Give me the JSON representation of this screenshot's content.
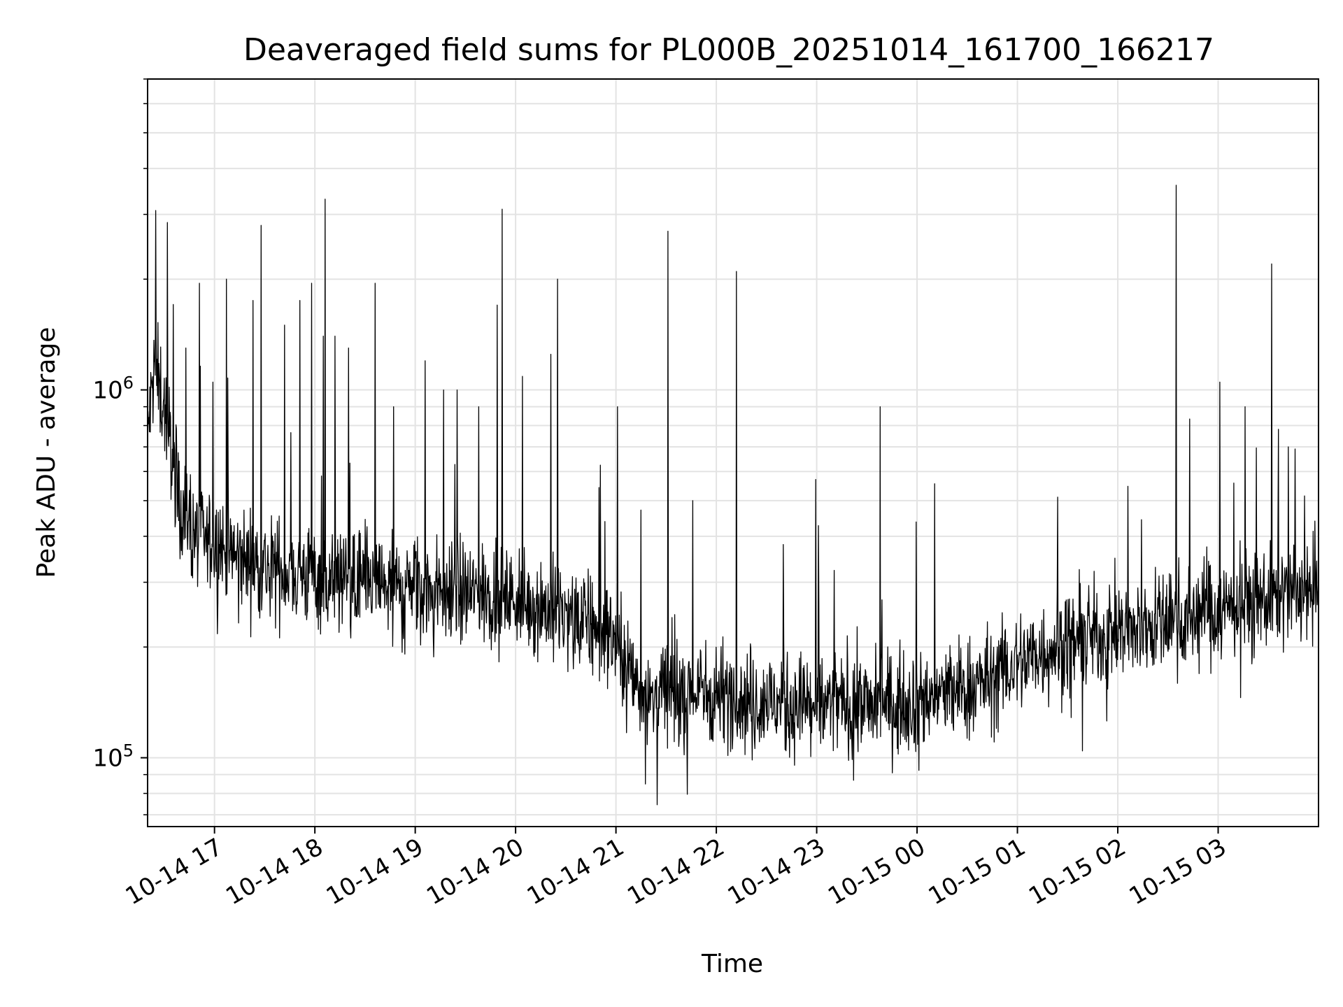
{
  "chart_data": {
    "type": "line",
    "title": "Deaveraged field sums for PL000B_20251014_161700_166217",
    "xlabel": "Time",
    "ylabel": "Peak ADU - average",
    "yscale": "log",
    "ylim": [
      65000,
      7000000
    ],
    "xlim": [
      "2025-10-14 16:20",
      "2025-10-15 04:00"
    ],
    "grid": true,
    "x_ticks": [
      "10-14 17",
      "10-14 18",
      "10-14 19",
      "10-14 20",
      "10-14 21",
      "10-14 22",
      "10-14 23",
      "10-15 00",
      "10-15 01",
      "10-15 02",
      "10-15 03"
    ],
    "y_ticks": [
      {
        "value": 100000,
        "base": "10",
        "exp": "5"
      },
      {
        "value": 1000000,
        "base": "10",
        "exp": "6"
      }
    ],
    "line_color": "#000000",
    "series": [
      {
        "x": [
          "2025-10-14 16:20",
          "2025-10-14 16:24",
          "2025-10-14 16:30",
          "2025-10-14 16:40",
          "2025-10-14 16:50",
          "2025-10-14 17:00",
          "2025-10-14 17:15",
          "2025-10-14 17:30",
          "2025-10-14 17:45",
          "2025-10-14 18:00",
          "2025-10-14 18:15",
          "2025-10-14 18:30",
          "2025-10-14 18:45",
          "2025-10-14 19:00",
          "2025-10-14 19:15",
          "2025-10-14 19:30",
          "2025-10-14 19:45",
          "2025-10-14 20:00",
          "2025-10-14 20:15",
          "2025-10-14 20:30",
          "2025-10-14 20:45",
          "2025-10-14 21:00",
          "2025-10-14 21:10",
          "2025-10-14 21:20",
          "2025-10-14 21:40",
          "2025-10-14 22:00",
          "2025-10-14 22:20",
          "2025-10-14 22:40",
          "2025-10-14 23:00",
          "2025-10-14 23:20",
          "2025-10-14 23:40",
          "2025-10-15 00:00",
          "2025-10-15 00:20",
          "2025-10-15 00:40",
          "2025-10-15 01:00",
          "2025-10-15 01:20",
          "2025-10-15 01:40",
          "2025-10-15 02:00",
          "2025-10-15 02:20",
          "2025-10-15 02:40",
          "2025-10-15 03:00",
          "2025-10-15 03:20",
          "2025-10-15 03:40",
          "2025-10-15 04:00"
        ],
        "baseline": [
          750000,
          1150000,
          900000,
          480000,
          400000,
          380000,
          350000,
          330000,
          320000,
          310000,
          300000,
          300000,
          290000,
          290000,
          285000,
          280000,
          275000,
          270000,
          260000,
          240000,
          230000,
          210000,
          165000,
          150000,
          150000,
          150000,
          145000,
          140000,
          140000,
          140000,
          140000,
          145000,
          150000,
          160000,
          180000,
          200000,
          210000,
          220000,
          230000,
          240000,
          250000,
          265000,
          275000,
          285000
        ]
      }
    ],
    "spikes": [
      {
        "x": "2025-10-14 16:25",
        "y": 1400000
      },
      {
        "x": "2025-10-14 16:43",
        "y": 1300000
      },
      {
        "x": "2025-10-14 16:51",
        "y": 1950000
      },
      {
        "x": "2025-10-14 16:59",
        "y": 1050000
      },
      {
        "x": "2025-10-14 17:07",
        "y": 2000000
      },
      {
        "x": "2025-10-14 17:23",
        "y": 1750000
      },
      {
        "x": "2025-10-14 17:28",
        "y": 2800000
      },
      {
        "x": "2025-10-14 17:42",
        "y": 1500000
      },
      {
        "x": "2025-10-14 17:51",
        "y": 1750000
      },
      {
        "x": "2025-10-14 17:58",
        "y": 1950000
      },
      {
        "x": "2025-10-14 18:05",
        "y": 1400000
      },
      {
        "x": "2025-10-14 18:06",
        "y": 3300000
      },
      {
        "x": "2025-10-14 18:12",
        "y": 1400000
      },
      {
        "x": "2025-10-14 18:20",
        "y": 1300000
      },
      {
        "x": "2025-10-14 18:36",
        "y": 1950000
      },
      {
        "x": "2025-10-14 18:47",
        "y": 900000
      },
      {
        "x": "2025-10-14 19:06",
        "y": 1200000
      },
      {
        "x": "2025-10-14 19:17",
        "y": 1000000
      },
      {
        "x": "2025-10-14 19:25",
        "y": 1000000
      },
      {
        "x": "2025-10-14 19:38",
        "y": 900000
      },
      {
        "x": "2025-10-14 19:49",
        "y": 1700000
      },
      {
        "x": "2025-10-14 19:52",
        "y": 3100000
      },
      {
        "x": "2025-10-14 20:21",
        "y": 1250000
      },
      {
        "x": "2025-10-14 20:25",
        "y": 2000000
      },
      {
        "x": "2025-10-14 21:01",
        "y": 900000
      },
      {
        "x": "2025-10-14 21:31",
        "y": 2700000
      },
      {
        "x": "2025-10-14 21:46",
        "y": 500000
      },
      {
        "x": "2025-10-14 22:12",
        "y": 2100000
      },
      {
        "x": "2025-10-14 22:40",
        "y": 380000
      },
      {
        "x": "2025-10-14 23:38",
        "y": 900000
      },
      {
        "x": "2025-10-15 02:35",
        "y": 3600000
      },
      {
        "x": "2025-10-15 03:01",
        "y": 1050000
      },
      {
        "x": "2025-10-15 03:16",
        "y": 900000
      },
      {
        "x": "2025-10-15 03:32",
        "y": 2200000
      },
      {
        "x": "2025-10-15 03:42",
        "y": 700000
      }
    ]
  }
}
